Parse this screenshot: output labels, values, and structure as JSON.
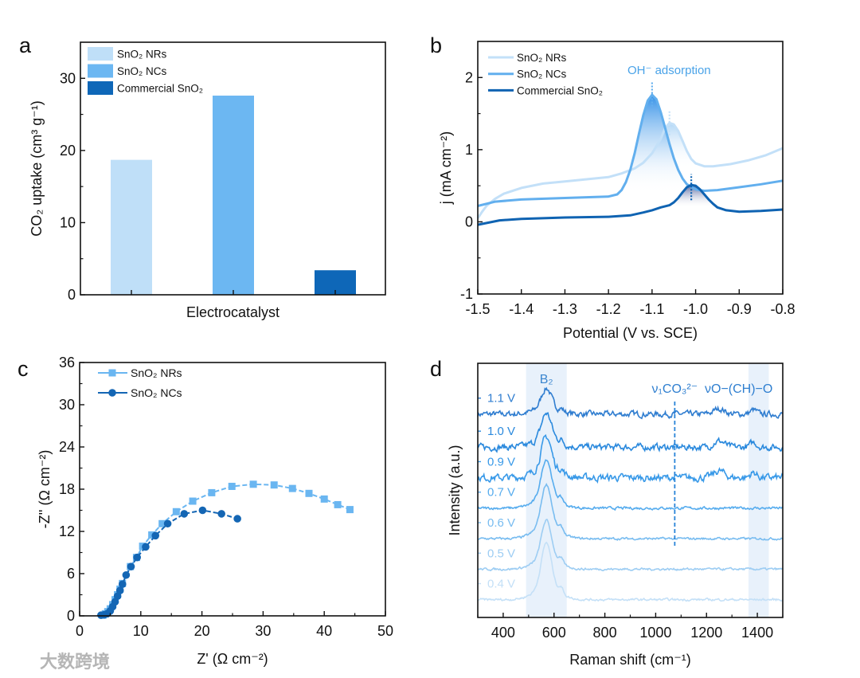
{
  "watermark": "大数跨境",
  "chart_data": [
    {
      "panel": "a",
      "type": "bar",
      "xlabel": "Electrocatalyst",
      "ylabel": "CO₂ uptake (cm³ g⁻¹)",
      "ylim": [
        0,
        35
      ],
      "yticks": [
        0,
        10,
        20,
        30
      ],
      "categories": [
        "SnO₂ NRs",
        "SnO₂ NCs",
        "Commercial SnO₂"
      ],
      "values": [
        18.7,
        27.6,
        3.4
      ],
      "colors": [
        "#bfdff8",
        "#6cb7f2",
        "#0e67b8"
      ],
      "legend": "top-left"
    },
    {
      "panel": "b",
      "type": "line",
      "xlabel": "Potential (V vs. SCE)",
      "ylabel": "j (mA cm⁻²)",
      "xlim": [
        -1.5,
        -0.8
      ],
      "ylim": [
        -1,
        2.5
      ],
      "xticks": [
        -1.5,
        -1.4,
        -1.3,
        -1.2,
        -1.1,
        -1.0,
        -0.9,
        -0.8
      ],
      "xtick_labels": [
        "-1.5",
        "-1.4",
        "-1.3",
        "-1.2",
        "-1.1",
        "-1.0",
        "-0.9",
        "-0.8"
      ],
      "yticks": [
        -1,
        0,
        1,
        2
      ],
      "annotation": "OH⁻ adsorption",
      "annotation_color": "#4aa3e8",
      "legend": "top-left",
      "series": [
        {
          "name": "SnO₂ NRs",
          "color": "#c3e0f8",
          "peak": -1.06,
          "x": [
            -1.5,
            -1.49,
            -1.48,
            -1.46,
            -1.44,
            -1.4,
            -1.35,
            -1.3,
            -1.25,
            -1.2,
            -1.17,
            -1.14,
            -1.12,
            -1.1,
            -1.08,
            -1.07,
            -1.06,
            -1.05,
            -1.04,
            -1.03,
            -1.02,
            -1.01,
            -1.0,
            -0.98,
            -0.96,
            -0.92,
            -0.88,
            -0.84,
            -0.8
          ],
          "y": [
            0.05,
            0.14,
            0.22,
            0.32,
            0.39,
            0.47,
            0.53,
            0.56,
            0.59,
            0.62,
            0.67,
            0.74,
            0.82,
            0.95,
            1.15,
            1.3,
            1.37,
            1.35,
            1.26,
            1.12,
            0.98,
            0.87,
            0.81,
            0.77,
            0.77,
            0.8,
            0.85,
            0.92,
            1.02
          ]
        },
        {
          "name": "SnO₂ NCs",
          "color": "#62afee",
          "peak": -1.1,
          "x": [
            -1.5,
            -1.46,
            -1.4,
            -1.3,
            -1.2,
            -1.18,
            -1.17,
            -1.16,
            -1.15,
            -1.14,
            -1.13,
            -1.12,
            -1.11,
            -1.1,
            -1.09,
            -1.08,
            -1.07,
            -1.06,
            -1.05,
            -1.04,
            -1.03,
            -1.02,
            -1.0,
            -0.98,
            -0.95,
            -0.9,
            -0.85,
            -0.8
          ],
          "y": [
            0.22,
            0.28,
            0.31,
            0.33,
            0.35,
            0.38,
            0.44,
            0.55,
            0.72,
            0.95,
            1.22,
            1.48,
            1.68,
            1.76,
            1.7,
            1.52,
            1.3,
            1.08,
            0.88,
            0.72,
            0.6,
            0.52,
            0.45,
            0.43,
            0.44,
            0.48,
            0.52,
            0.57
          ]
        },
        {
          "name": "Commercial SnO₂",
          "color": "#0f63b2",
          "peak": -1.01,
          "x": [
            -1.5,
            -1.45,
            -1.4,
            -1.3,
            -1.2,
            -1.15,
            -1.12,
            -1.1,
            -1.08,
            -1.06,
            -1.05,
            -1.04,
            -1.03,
            -1.02,
            -1.01,
            -1.0,
            -0.99,
            -0.98,
            -0.97,
            -0.96,
            -0.95,
            -0.93,
            -0.9,
            -0.85,
            -0.8
          ],
          "y": [
            -0.04,
            0.02,
            0.04,
            0.06,
            0.07,
            0.09,
            0.13,
            0.16,
            0.2,
            0.23,
            0.27,
            0.33,
            0.41,
            0.48,
            0.51,
            0.5,
            0.45,
            0.38,
            0.31,
            0.25,
            0.2,
            0.16,
            0.14,
            0.15,
            0.17
          ]
        }
      ]
    },
    {
      "panel": "c",
      "type": "scatter",
      "xlabel": "Z' (Ω cm⁻²)",
      "ylabel": "-Z'' (Ω cm⁻²)",
      "xlim": [
        0,
        50
      ],
      "ylim": [
        0,
        36
      ],
      "xticks": [
        0,
        10,
        20,
        30,
        40,
        50
      ],
      "yticks": [
        0,
        6,
        12,
        18,
        24,
        30,
        36
      ],
      "legend": "top-left",
      "series": [
        {
          "name": "SnO₂ NRs",
          "color": "#6ab6f1",
          "marker": "square",
          "x": [
            3.8,
            4.2,
            4.6,
            5.0,
            5.4,
            5.8,
            6.2,
            6.6,
            7.0,
            8.3,
            9.3,
            10.3,
            11.8,
            13.5,
            15.8,
            18.5,
            21.6,
            24.9,
            28.4,
            31.8,
            34.8,
            37.5,
            40.0,
            42.2,
            44.2
          ],
          "y": [
            0.1,
            0.3,
            0.6,
            1.0,
            1.6,
            2.3,
            3.0,
            3.8,
            4.6,
            7.0,
            8.3,
            9.9,
            11.5,
            13.1,
            14.8,
            16.3,
            17.5,
            18.4,
            18.7,
            18.6,
            18.1,
            17.4,
            16.6,
            15.8,
            15.1
          ]
        },
        {
          "name": "SnO₂ NCs",
          "color": "#1466b4",
          "marker": "circle",
          "x": [
            3.5,
            4.0,
            4.5,
            5.0,
            5.4,
            5.8,
            6.2,
            6.6,
            7.0,
            7.6,
            8.4,
            9.4,
            10.8,
            12.4,
            14.4,
            17.1,
            20.1,
            23.2,
            25.8
          ],
          "y": [
            0.1,
            0.15,
            0.3,
            0.7,
            1.3,
            2.0,
            2.8,
            3.6,
            4.5,
            5.8,
            7.0,
            8.3,
            9.8,
            11.4,
            13.1,
            14.5,
            15.0,
            14.5,
            13.8
          ]
        }
      ]
    },
    {
      "panel": "d",
      "type": "line",
      "xlabel": "Raman shift (cm⁻¹)",
      "ylabel": "Intensity (a.u.)",
      "xlim": [
        300,
        1500
      ],
      "ylim": [
        0,
        100
      ],
      "xticks": [
        400,
        600,
        800,
        1000,
        1200,
        1400
      ],
      "bands": [
        {
          "label": "B₂",
          "range": [
            490,
            650
          ]
        },
        {
          "label": "",
          "range": [
            1365,
            1445
          ]
        }
      ],
      "markers": [
        {
          "label": "ν₁CO₃²⁻",
          "x": 1075
        },
        {
          "label": "νO−(CH)−O",
          "x": 1405
        }
      ],
      "peak_center": 570,
      "series": [
        {
          "name": "1.1 V",
          "color": "#2f7dd0",
          "offset": 80,
          "peak": 9.5,
          "noise": 1.8
        },
        {
          "name": "1.0 V",
          "color": "#2a89dd",
          "offset": 67,
          "peak": 12.5,
          "noise": 2.0
        },
        {
          "name": "0.9 V",
          "color": "#3899e8",
          "offset": 55,
          "peak": 15,
          "noise": 2.2
        },
        {
          "name": "0.7 V",
          "color": "#56acee",
          "offset": 43,
          "peak": 18,
          "noise": 0.8
        },
        {
          "name": "0.6 V",
          "color": "#78bcf0",
          "offset": 31,
          "peak": 20,
          "noise": 0.7
        },
        {
          "name": "0.5 V",
          "color": "#9dcdf3",
          "offset": 19,
          "peak": 18,
          "noise": 0.7
        },
        {
          "name": "0.4 V",
          "color": "#c4e0f7",
          "offset": 7,
          "peak": 21,
          "noise": 0.7
        }
      ]
    }
  ]
}
